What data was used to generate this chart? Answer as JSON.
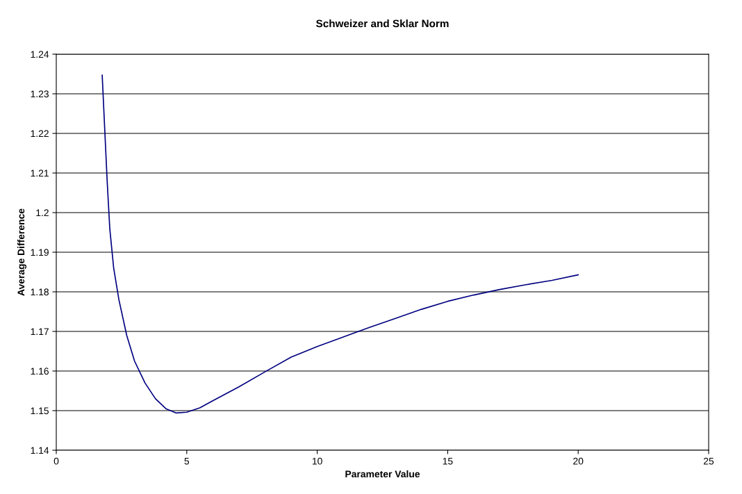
{
  "chart_data": {
    "type": "line",
    "title": "Schweizer and Sklar Norm",
    "xlabel": "Parameter Value",
    "ylabel": "Average Difference",
    "series": [
      {
        "color": "#000080",
        "x": [
          1.76,
          1.85,
          1.95,
          2.05,
          2.2,
          2.4,
          2.7,
          3.0,
          3.4,
          3.8,
          4.2,
          4.6,
          5.0,
          5.5,
          6,
          7,
          8,
          9,
          10,
          11,
          12,
          13,
          14,
          15,
          16,
          17,
          18,
          19,
          20
        ],
        "values": [
          1.2347,
          1.222,
          1.208,
          1.196,
          1.186,
          1.178,
          1.169,
          1.1625,
          1.157,
          1.153,
          1.1505,
          1.1494,
          1.1496,
          1.1507,
          1.1525,
          1.156,
          1.1598,
          1.1635,
          1.1662,
          1.1686,
          1.171,
          1.1733,
          1.1756,
          1.1776,
          1.1792,
          1.1806,
          1.1818,
          1.1829,
          1.1843
        ]
      }
    ],
    "xlim": [
      0,
      25
    ],
    "xticks": [
      0,
      5,
      10,
      15,
      20,
      25
    ],
    "ylim": [
      1.14,
      1.24
    ],
    "yticks": [
      1.14,
      1.15,
      1.16,
      1.17,
      1.18,
      1.19,
      1.2,
      1.21,
      1.22,
      1.23,
      1.24
    ],
    "grid": "y",
    "marker": "none",
    "line_style": "solid"
  }
}
